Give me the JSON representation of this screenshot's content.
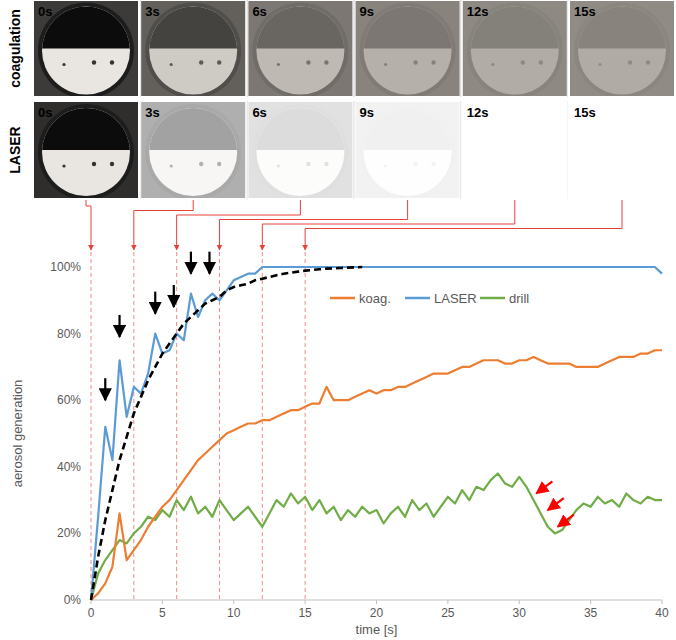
{
  "photo_strip": {
    "row_labels": [
      "coagulation",
      "LASER"
    ],
    "times": [
      {
        "value": 0,
        "label": "0s"
      },
      {
        "value": 3,
        "label": "3s"
      },
      {
        "value": 6,
        "label": "6s"
      },
      {
        "value": 9,
        "label": "9s"
      },
      {
        "value": 12,
        "label": "12s"
      },
      {
        "value": 15,
        "label": "15s"
      }
    ]
  },
  "chart_data": {
    "type": "line",
    "x_label": "time [s]",
    "y_label": "aerosol generation",
    "x": [
      0,
      0.5,
      1,
      1.5,
      2,
      2.5,
      3,
      3.5,
      4,
      4.5,
      5,
      5.5,
      6,
      6.5,
      7,
      7.5,
      8,
      8.5,
      9,
      9.5,
      10,
      10.5,
      11,
      11.5,
      12,
      12.5,
      13,
      13.5,
      14,
      14.5,
      15,
      15.5,
      16,
      16.5,
      17,
      17.5,
      18,
      18.5,
      19,
      19.5,
      20,
      20.5,
      21,
      21.5,
      22,
      22.5,
      23,
      23.5,
      24,
      24.5,
      25,
      25.5,
      26,
      26.5,
      27,
      27.5,
      28,
      28.5,
      29,
      29.5,
      30,
      30.5,
      31,
      31.5,
      32,
      32.5,
      33,
      33.5,
      34,
      34.5,
      35,
      35.5,
      36,
      36.5,
      37,
      37.5,
      38,
      38.5,
      39,
      39.5,
      40
    ],
    "series": [
      {
        "name": "koag.",
        "color": "#ed7d31",
        "line_style": "solid",
        "values": [
          0,
          2,
          5,
          10,
          26,
          12,
          15,
          18,
          22,
          25,
          28,
          30,
          33,
          36,
          39,
          42,
          44,
          46,
          48,
          50,
          51,
          52,
          53,
          53,
          54,
          54,
          55,
          56,
          57,
          57,
          58,
          59,
          59,
          64,
          60,
          60,
          60,
          61,
          62,
          63,
          62,
          63,
          63,
          64,
          64,
          65,
          66,
          67,
          68,
          68,
          68,
          69,
          70,
          70,
          71,
          72,
          72,
          72,
          71,
          71,
          72,
          72,
          73,
          72,
          71,
          71,
          71,
          71,
          70,
          70,
          70,
          70,
          71,
          72,
          73,
          73,
          73,
          74,
          74,
          75,
          75
        ]
      },
      {
        "name": "LASER",
        "color": "#5b9bd5",
        "line_style": "solid",
        "values": [
          0,
          25,
          52,
          42,
          72,
          55,
          64,
          62,
          68,
          80,
          74,
          75,
          80,
          78,
          92,
          85,
          90,
          92,
          90,
          93,
          96,
          97,
          98,
          98,
          100,
          100,
          100,
          100,
          100,
          100,
          100,
          100,
          100,
          100,
          100,
          100,
          100,
          100,
          100,
          100,
          100,
          100,
          100,
          100,
          100,
          100,
          100,
          100,
          100,
          100,
          100,
          100,
          100,
          100,
          100,
          100,
          100,
          100,
          100,
          100,
          100,
          100,
          100,
          100,
          100,
          100,
          100,
          100,
          100,
          100,
          100,
          100,
          100,
          100,
          100,
          100,
          100,
          100,
          100,
          100,
          98
        ]
      },
      {
        "name": "drill",
        "color": "#70ad47",
        "line_style": "solid",
        "values": [
          0,
          8,
          12,
          15,
          18,
          17,
          20,
          22,
          25,
          24,
          27,
          25,
          30,
          27,
          31,
          26,
          28,
          25,
          30,
          27,
          24,
          26,
          28,
          25,
          22,
          26,
          30,
          28,
          32,
          29,
          31,
          27,
          30,
          26,
          28,
          24,
          27,
          25,
          28,
          26,
          27,
          23,
          26,
          28,
          25,
          30,
          27,
          29,
          25,
          28,
          31,
          29,
          33,
          30,
          34,
          33,
          36,
          38,
          35,
          34,
          37,
          34,
          30,
          26,
          22,
          20,
          21,
          24,
          27,
          29,
          28,
          31,
          29,
          30,
          28,
          32,
          30,
          29,
          31,
          30,
          30
        ]
      }
    ],
    "fit": {
      "color": "#000000",
      "line_style": "dashed",
      "values": [
        0,
        13,
        24,
        33,
        42,
        49,
        56,
        61,
        66,
        70,
        74,
        77,
        80,
        83,
        85,
        87,
        89,
        90,
        91,
        93,
        94,
        94.5,
        95,
        96,
        96.5,
        97,
        97.5,
        98,
        98.3,
        98.6,
        98.9,
        99.1,
        99.3,
        99.5,
        99.6,
        99.7,
        99.8,
        99.9,
        100,
        null,
        null,
        null,
        null,
        null,
        null,
        null,
        null,
        null,
        null,
        null,
        null,
        null,
        null,
        null,
        null,
        null,
        null,
        null,
        null,
        null,
        null,
        null,
        null,
        null,
        null,
        null,
        null,
        null,
        null,
        null,
        null,
        null,
        null,
        null,
        null,
        null,
        null,
        null,
        null,
        null,
        null
      ]
    },
    "arrows": [
      {
        "x": 1,
        "y": 60,
        "color": "#000000"
      },
      {
        "x": 2,
        "y": 79,
        "color": "#000000"
      },
      {
        "x": 4.5,
        "y": 86,
        "color": "#000000"
      },
      {
        "x": 5.8,
        "y": 88,
        "color": "#000000"
      },
      {
        "x": 7,
        "y": 98,
        "color": "#000000"
      },
      {
        "x": 8.3,
        "y": 98,
        "color": "#000000"
      },
      {
        "x": 31.2,
        "y": 32,
        "color": "#ff0000"
      },
      {
        "x": 32,
        "y": 27,
        "color": "#ff0000"
      },
      {
        "x": 32.7,
        "y": 22,
        "color": "#ff0000"
      }
    ],
    "xlim": [
      0,
      40
    ],
    "xticks": [
      0,
      5,
      10,
      15,
      20,
      25,
      30,
      35,
      40
    ],
    "ylim": [
      0,
      100
    ],
    "yticks": [
      {
        "value": 0,
        "label": "0%"
      },
      {
        "value": 20,
        "label": "20%"
      },
      {
        "value": 40,
        "label": "40%"
      },
      {
        "value": 60,
        "label": "60%"
      },
      {
        "value": 80,
        "label": "80%"
      },
      {
        "value": 100,
        "label": "100%"
      }
    ],
    "grid": false,
    "legend": "top"
  }
}
